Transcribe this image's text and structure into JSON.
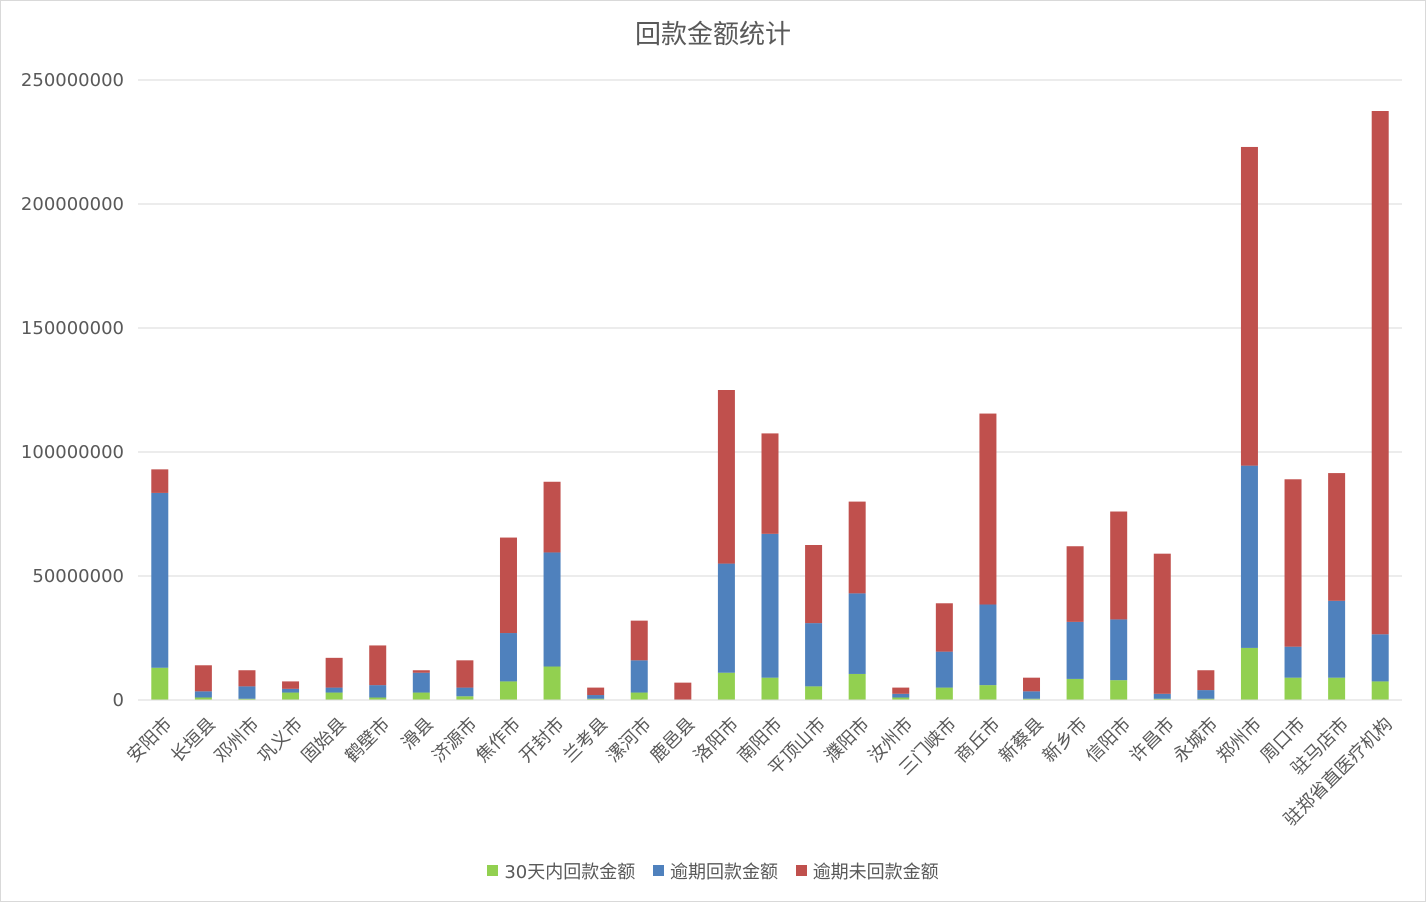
{
  "chart_data": {
    "type": "bar",
    "stacked": true,
    "title": "回款金额统计",
    "xlabel": "",
    "ylabel": "",
    "ylim": [
      0,
      250000000
    ],
    "yticks": [
      0,
      50000000,
      100000000,
      150000000,
      200000000,
      250000000
    ],
    "ytick_labels": [
      "0",
      "50000000",
      "100000000",
      "150000000",
      "200000000",
      "250000000"
    ],
    "grid": true,
    "legend_position": "bottom",
    "categories": [
      "安阳市",
      "长垣县",
      "邓州市",
      "巩义市",
      "固始县",
      "鹤壁市",
      "滑县",
      "济源市",
      "焦作市",
      "开封市",
      "兰考县",
      "漯河市",
      "鹿邑县",
      "洛阳市",
      "南阳市",
      "平顶山市",
      "濮阳市",
      "汝州市",
      "三门峡市",
      "商丘市",
      "新蔡县",
      "新乡市",
      "信阳市",
      "许昌市",
      "永城市",
      "郑州市",
      "周口市",
      "驻马店市",
      "驻郑省直医疗机构"
    ],
    "series": [
      {
        "name": "30天内回款金额",
        "color": "#92d050",
        "values": [
          13000000,
          1000000,
          500000,
          3000000,
          3000000,
          1000000,
          3000000,
          1500000,
          7500000,
          13500000,
          500000,
          3000000,
          0,
          11000000,
          9000000,
          5500000,
          10500000,
          1000000,
          5000000,
          6000000,
          500000,
          8500000,
          8000000,
          500000,
          500000,
          21000000,
          9000000,
          9000000,
          7500000
        ]
      },
      {
        "name": "逾期回款金额",
        "color": "#4f81bd",
        "values": [
          70500000,
          2500000,
          5000000,
          1500000,
          2000000,
          5000000,
          8000000,
          3500000,
          19500000,
          46000000,
          1500000,
          13000000,
          0,
          44000000,
          58000000,
          25500000,
          32500000,
          1500000,
          14500000,
          32500000,
          3000000,
          23000000,
          24500000,
          2000000,
          3500000,
          73500000,
          12500000,
          31000000,
          19000000
        ]
      },
      {
        "name": "逾期未回款金额",
        "color": "#c0504d",
        "values": [
          9500000,
          10500000,
          6500000,
          3000000,
          12000000,
          16000000,
          1000000,
          11000000,
          38500000,
          28500000,
          3000000,
          16000000,
          7000000,
          70000000,
          40500000,
          31500000,
          37000000,
          2500000,
          19500000,
          77000000,
          5500000,
          30500000,
          43500000,
          56500000,
          8000000,
          128500000,
          67500000,
          51500000,
          211000000
        ]
      }
    ]
  }
}
